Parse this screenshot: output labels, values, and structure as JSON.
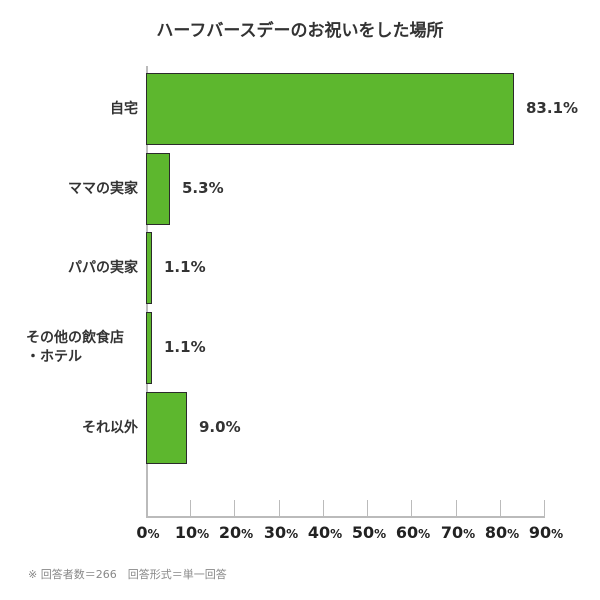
{
  "chart_data": {
    "type": "bar",
    "orientation": "horizontal",
    "title": "ハーフバースデーのお祝いをした場所",
    "categories": [
      "自宅",
      "ママの実家",
      "パパの実家",
      "その他の飲食店・ホテル",
      "それ以外"
    ],
    "category_lines": [
      [
        "自宅"
      ],
      [
        "ママの実家"
      ],
      [
        "パパの実家"
      ],
      [
        "その他の飲食店",
        "・ホテル"
      ],
      [
        "それ以外"
      ]
    ],
    "values": [
      83.1,
      5.3,
      1.1,
      1.1,
      9.0
    ],
    "value_labels": [
      "83.1%",
      "5.3%",
      "1.1%",
      "1.1%",
      "9.0%"
    ],
    "xlabel": "",
    "ylabel": "",
    "xlim": [
      0,
      90
    ],
    "x_ticks": [
      0,
      10,
      20,
      30,
      40,
      50,
      60,
      70,
      80,
      90
    ],
    "x_tick_suffix": "%",
    "grid": false,
    "legend": null,
    "bar_color": "#5db72e",
    "note": "※ 回答者数＝266　回答形式＝単一回答"
  }
}
